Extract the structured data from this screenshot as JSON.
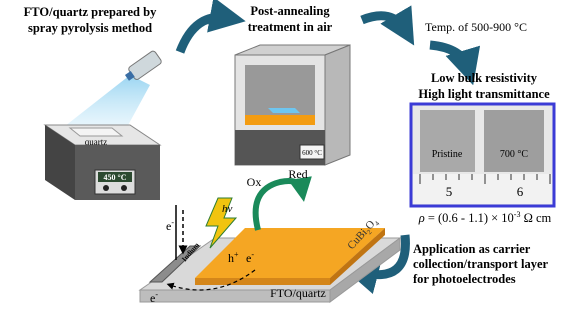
{
  "step1": {
    "lines": [
      "FTO/quartz prepared by",
      "spray pyrolysis method"
    ],
    "substrate": "quartz",
    "hotplate_temp": "450 °C"
  },
  "step2": {
    "lines": [
      "Post-annealing",
      "treatment in air"
    ],
    "furnace_temp": "600 °C"
  },
  "step3": {
    "label": "Temp. of 500-900 °C"
  },
  "step4": {
    "lines": [
      "Low bulk resistivity",
      "High light transmittance"
    ],
    "samples": [
      "Pristine",
      "700 °C"
    ],
    "ruler": [
      "5",
      "6"
    ],
    "resistivity": {
      "symbol": "ρ",
      "text": " = (0.6 - 1.1) × 10",
      "exp": "-3",
      "unit": " Ω cm"
    }
  },
  "step5": {
    "lines": [
      "Application as carrier",
      "collection/transport layer",
      "for photoelectrodes"
    ],
    "device": {
      "ox": "Ox",
      "red": "Red",
      "light": "hν",
      "electron": "e",
      "minus": "-",
      "hole": "h",
      "plus": "+",
      "contact": "Indium",
      "absorber": [
        "CuBi",
        "2",
        "O",
        "4"
      ],
      "substrate": "FTO/quartz"
    }
  }
}
